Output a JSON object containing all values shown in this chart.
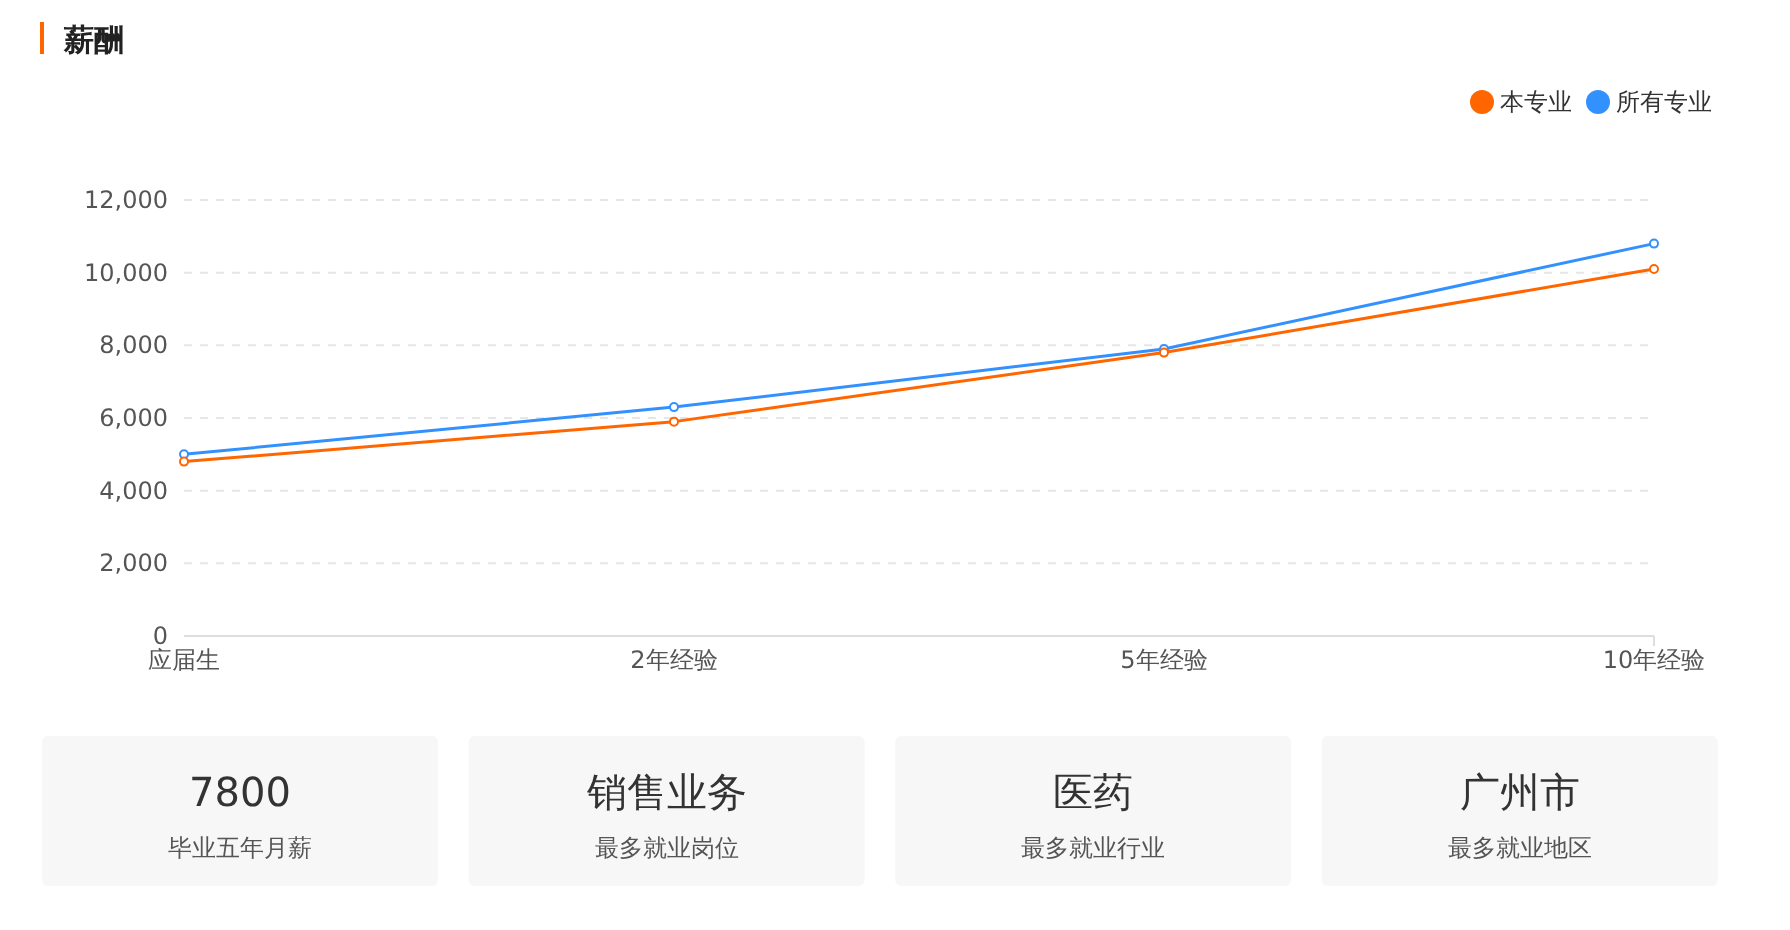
{
  "chart_data": [
    {
      "type": "line",
      "title": "薪酬",
      "categories": [
        "应届生",
        "2年经验",
        "5年经验",
        "10年经验"
      ],
      "series": [
        {
          "name": "本专业",
          "color": "#ff6600",
          "values": [
            4800,
            5900,
            7800,
            10100
          ]
        },
        {
          "name": "所有专业",
          "color": "#3391ff",
          "values": [
            5000,
            6300,
            7900,
            10800
          ]
        }
      ],
      "ylim": [
        0,
        12000
      ],
      "yticks": [
        0,
        {
          "value": 2000,
          "label": "2,000"
        },
        {
          "value": 4000,
          "label": "4,000"
        },
        {
          "value": 6000,
          "label": "6,000"
        },
        {
          "value": 8000,
          "label": "8,000"
        },
        {
          "value": 10000,
          "label": "10,000"
        },
        {
          "value": 12000,
          "label": "12,000"
        }
      ],
      "grid": "y",
      "legend": "top right",
      "marker": "circle",
      "line_style": "solid"
    },
    {
      "type": "other",
      "annotations": [
        "7800",
        "毕业五年月薪",
        "销售业务",
        "最多就业岗位",
        "医药",
        "最多就业行业",
        "广州市",
        "最多就业地区"
      ]
    }
  ]
}
